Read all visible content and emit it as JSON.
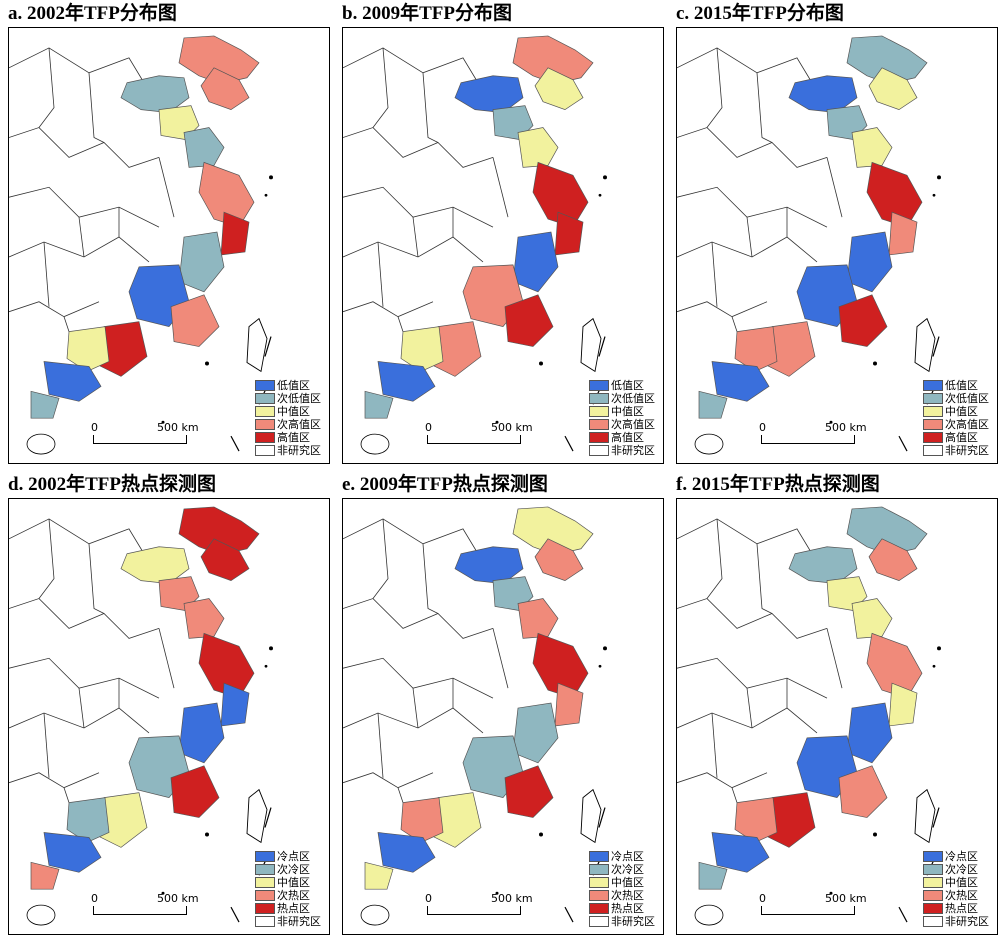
{
  "panels": [
    {
      "title": "a. 2002年TFP分布图",
      "palette": [
        "#f08a7a",
        "#f08a7a",
        "#8fb7c0",
        "#f2f29e",
        "#8fb7c0",
        "#f08a7a",
        "#cf2020",
        "#8fb7c0",
        "#3a6fdc",
        "#f08a7a",
        "#cf2020",
        "#f2f29e",
        "#3a6fdc",
        "#8fb7c0"
      ]
    },
    {
      "title": "b. 2009年TFP分布图",
      "palette": [
        "#f08a7a",
        "#f2f29e",
        "#3a6fdc",
        "#8fb7c0",
        "#f2f29e",
        "#cf2020",
        "#cf2020",
        "#3a6fdc",
        "#f08a7a",
        "#cf2020",
        "#f08a7a",
        "#f2f29e",
        "#3a6fdc",
        "#8fb7c0"
      ]
    },
    {
      "title": "c. 2015年TFP分布图",
      "palette": [
        "#8fb7c0",
        "#f2f29e",
        "#3a6fdc",
        "#8fb7c0",
        "#f2f29e",
        "#cf2020",
        "#f08a7a",
        "#3a6fdc",
        "#3a6fdc",
        "#cf2020",
        "#f08a7a",
        "#f08a7a",
        "#3a6fdc",
        "#8fb7c0"
      ]
    },
    {
      "title": "d. 2002年TFP热点探测图",
      "palette": [
        "#cf2020",
        "#cf2020",
        "#f2f29e",
        "#f08a7a",
        "#f08a7a",
        "#cf2020",
        "#3a6fdc",
        "#3a6fdc",
        "#8fb7c0",
        "#cf2020",
        "#f2f29e",
        "#8fb7c0",
        "#3a6fdc",
        "#f08a7a"
      ]
    },
    {
      "title": "e. 2009年TFP热点探测图",
      "palette": [
        "#f2f29e",
        "#f08a7a",
        "#3a6fdc",
        "#8fb7c0",
        "#f08a7a",
        "#cf2020",
        "#f08a7a",
        "#8fb7c0",
        "#8fb7c0",
        "#cf2020",
        "#f2f29e",
        "#f08a7a",
        "#3a6fdc",
        "#f2f29e"
      ]
    },
    {
      "title": "f. 2015年TFP热点探测图",
      "palette": [
        "#8fb7c0",
        "#f08a7a",
        "#8fb7c0",
        "#f2f29e",
        "#f2f29e",
        "#f08a7a",
        "#f2f29e",
        "#3a6fdc",
        "#3a6fdc",
        "#f08a7a",
        "#cf2020",
        "#f08a7a",
        "#3a6fdc",
        "#8fb7c0"
      ]
    }
  ],
  "legend_distribution": [
    {
      "label": "低值区",
      "color": "#3a6fdc"
    },
    {
      "label": "次低值区",
      "color": "#8fb7c0"
    },
    {
      "label": "中值区",
      "color": "#f2f29e"
    },
    {
      "label": "次高值区",
      "color": "#f08a7a"
    },
    {
      "label": "高值区",
      "color": "#cf2020"
    },
    {
      "label": "非研究区",
      "color": "#ffffff"
    }
  ],
  "legend_hotspot": [
    {
      "label": "冷点区",
      "color": "#3a6fdc"
    },
    {
      "label": "次冷区",
      "color": "#8fb7c0"
    },
    {
      "label": "中值区",
      "color": "#f2f29e"
    },
    {
      "label": "次热区",
      "color": "#f08a7a"
    },
    {
      "label": "热点区",
      "color": "#cf2020"
    },
    {
      "label": "非研究区",
      "color": "#ffffff"
    }
  ],
  "scale": {
    "zero": "0",
    "max": "500 km"
  }
}
